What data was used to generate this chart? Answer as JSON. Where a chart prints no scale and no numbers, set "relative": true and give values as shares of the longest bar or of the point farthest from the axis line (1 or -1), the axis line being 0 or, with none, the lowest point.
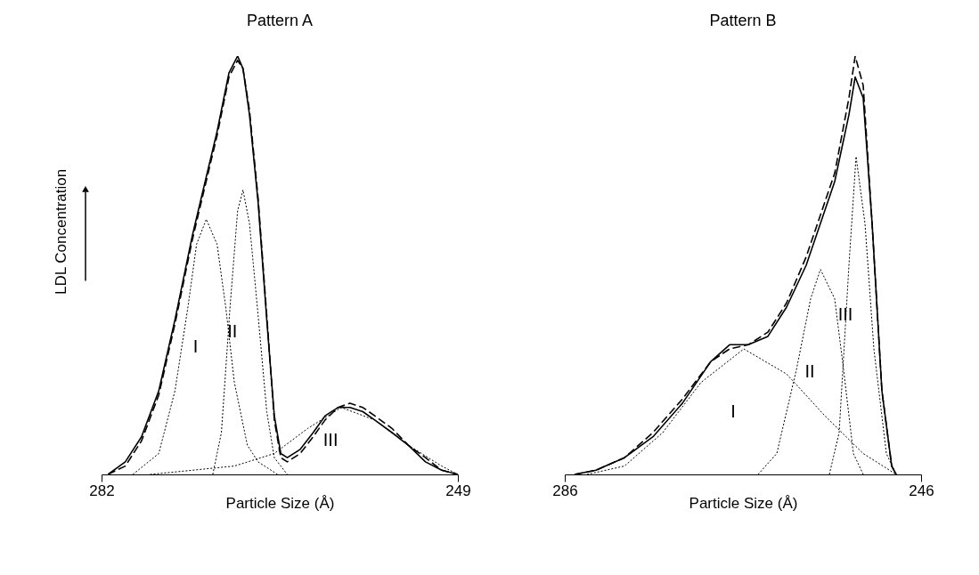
{
  "chart_data": [
    {
      "type": "line",
      "title": "Pattern A",
      "xlabel": "Particle Size (Å)",
      "ylabel": "LDL Concentration",
      "relative": true,
      "xlim": [
        282,
        249
      ],
      "xticks": [
        282,
        249
      ],
      "series": [
        {
          "color": "#000000",
          "line_style": "solid",
          "x": [
            281.4,
            279.8,
            278.3,
            276.7,
            275.2,
            273.6,
            272.5,
            271.3,
            270.2,
            269.4,
            268.9,
            268.3,
            267.5,
            266.7,
            266.0,
            265.4,
            264.8,
            263.6,
            262.4,
            261.3,
            260.1,
            259.0,
            257.8,
            256.7,
            255.1,
            253.6,
            252.0,
            250.5,
            249.0
          ],
          "values": [
            0,
            0.03,
            0.09,
            0.2,
            0.37,
            0.57,
            0.69,
            0.82,
            0.96,
            1,
            0.97,
            0.86,
            0.65,
            0.37,
            0.14,
            0.05,
            0.04,
            0.06,
            0.1,
            0.14,
            0.16,
            0.16,
            0.15,
            0.13,
            0.1,
            0.07,
            0.03,
            0.01,
            0
          ]
        },
        {
          "color": "#000000",
          "line_style": "dashed",
          "x": [
            281.4,
            279.8,
            278.3,
            276.7,
            275.2,
            273.6,
            272.5,
            271.3,
            270.2,
            269.4,
            268.9,
            268.3,
            267.5,
            266.7,
            266.0,
            265.4,
            264.8,
            263.6,
            262.4,
            261.3,
            260.1,
            259.0,
            257.8,
            256.7,
            255.1,
            253.6,
            252.0,
            250.5,
            249.0
          ],
          "values": [
            0,
            0.02,
            0.08,
            0.19,
            0.36,
            0.56,
            0.68,
            0.81,
            0.95,
            0.99,
            0.97,
            0.87,
            0.66,
            0.38,
            0.13,
            0.04,
            0.03,
            0.05,
            0.09,
            0.13,
            0.16,
            0.17,
            0.16,
            0.14,
            0.11,
            0.07,
            0.04,
            0.01,
            0
          ]
        },
        {
          "name": "I",
          "color": "#000000",
          "line_style": "dotted",
          "x": [
            279.1,
            276.7,
            275.2,
            274.0,
            273.2,
            272.3,
            271.3,
            270.5,
            269.7,
            268.5,
            267.5,
            265.7
          ],
          "values": [
            0,
            0.05,
            0.2,
            0.4,
            0.55,
            0.61,
            0.55,
            0.4,
            0.22,
            0.07,
            0.03,
            0
          ]
        },
        {
          "name": "II",
          "color": "#000000",
          "line_style": "dotted",
          "x": [
            271.7,
            270.9,
            270.1,
            269.4,
            268.9,
            268.3,
            267.5,
            266.7,
            266.0,
            264.8
          ],
          "values": [
            0,
            0.1,
            0.4,
            0.63,
            0.68,
            0.6,
            0.38,
            0.15,
            0.04,
            0
          ]
        },
        {
          "name": "III",
          "color": "#000000",
          "line_style": "dotted",
          "x": [
            277.5,
            269.7,
            266.0,
            262.9,
            259.8,
            256.7,
            253.6,
            250.5,
            249.0
          ],
          "values": [
            0,
            0.02,
            0.05,
            0.11,
            0.16,
            0.13,
            0.07,
            0.02,
            0
          ]
        }
      ]
    },
    {
      "type": "line",
      "title": "Pattern B",
      "xlabel": "Particle Size (Å)",
      "relative": true,
      "xlim": [
        286,
        246
      ],
      "xticks": [
        286,
        246
      ],
      "series": [
        {
          "color": "#000000",
          "line_style": "solid",
          "x": [
            284.9,
            282.5,
            279.3,
            276.1,
            272.8,
            269.6,
            267.5,
            265.4,
            263.2,
            261.1,
            258.9,
            257.3,
            255.7,
            254.1,
            253.4,
            252.5,
            251.5,
            250.4,
            249.3,
            248.8
          ],
          "values": [
            0,
            0.01,
            0.04,
            0.09,
            0.17,
            0.27,
            0.31,
            0.31,
            0.33,
            0.4,
            0.5,
            0.6,
            0.7,
            0.86,
            0.95,
            0.9,
            0.6,
            0.2,
            0.02,
            0
          ]
        },
        {
          "color": "#000000",
          "line_style": "dashed",
          "x": [
            284.9,
            282.5,
            279.3,
            276.1,
            272.8,
            269.6,
            267.5,
            265.4,
            263.2,
            261.1,
            258.9,
            257.3,
            255.7,
            254.1,
            253.4,
            252.5,
            251.5,
            250.4,
            249.3,
            248.8
          ],
          "values": [
            0,
            0.01,
            0.04,
            0.1,
            0.18,
            0.27,
            0.3,
            0.31,
            0.34,
            0.41,
            0.52,
            0.62,
            0.72,
            0.9,
            1,
            0.93,
            0.6,
            0.2,
            0.02,
            0
          ]
        },
        {
          "name": "I",
          "color": "#000000",
          "line_style": "dotted",
          "x": [
            283.5,
            279.3,
            275.0,
            270.7,
            265.9,
            261.1,
            256.8,
            252.5,
            248.8
          ],
          "values": [
            0,
            0.02,
            0.1,
            0.22,
            0.3,
            0.24,
            0.14,
            0.05,
            0
          ]
        },
        {
          "name": "II",
          "color": "#000000",
          "line_style": "dotted",
          "x": [
            264.3,
            262.2,
            260.0,
            258.4,
            257.3,
            255.7,
            254.7,
            253.6,
            252.5
          ],
          "values": [
            0,
            0.05,
            0.25,
            0.42,
            0.49,
            0.42,
            0.25,
            0.05,
            0
          ]
        },
        {
          "name": "III",
          "color": "#000000",
          "line_style": "dotted",
          "x": [
            256.3,
            255.2,
            254.1,
            253.3,
            252.3,
            251.3,
            249.9,
            248.8
          ],
          "values": [
            0,
            0.1,
            0.5,
            0.76,
            0.6,
            0.3,
            0.05,
            0
          ]
        }
      ]
    }
  ]
}
